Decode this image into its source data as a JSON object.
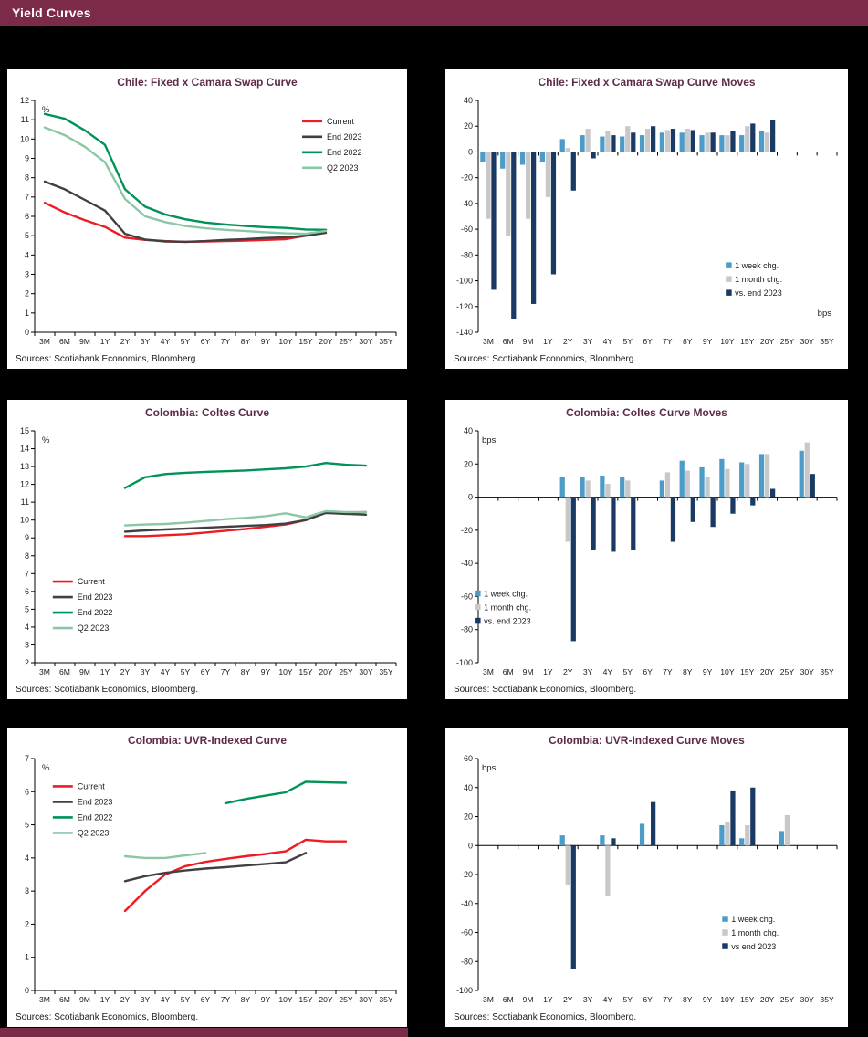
{
  "page": {
    "header_title": "Yield Curves",
    "colors": {
      "header_bar": "#7b2b49",
      "chart_title": "#5e2a49",
      "page_bg": "#000000",
      "current_red": "#ed1c24",
      "end_2023_gray": "#404040",
      "end_2022_green": "#009357",
      "q2_2023_green": "#8bc7a5",
      "week_blue": "#4d9bc8",
      "month_gray": "#c8c8c8",
      "vs_end_navy": "#1b3a63"
    }
  },
  "chart_data": [
    {
      "type": "line",
      "title": "Chile: Fixed x Camara Swap Curve",
      "unit": "%",
      "unit_pos": "top-left",
      "source": "Sources: Scotiabank Economics, Bloomberg.",
      "categories": [
        "3M",
        "6M",
        "9M",
        "1Y",
        "2Y",
        "3Y",
        "4Y",
        "5Y",
        "6Y",
        "7Y",
        "8Y",
        "9Y",
        "10Y",
        "15Y",
        "20Y",
        "25Y",
        "30Y",
        "35Y"
      ],
      "ylim": [
        0,
        12
      ],
      "ytick": 1,
      "legend": {
        "x": 0.74,
        "y": 0.09
      },
      "series": [
        {
          "name": "Current",
          "color": "#ed1c24",
          "values": [
            6.7,
            6.2,
            5.8,
            5.45,
            4.9,
            4.78,
            4.72,
            4.68,
            4.7,
            4.72,
            4.75,
            4.78,
            4.82,
            5.0,
            5.3,
            null,
            null,
            null
          ]
        },
        {
          "name": "End 2023",
          "color": "#404040",
          "values": [
            7.8,
            7.4,
            6.85,
            6.3,
            5.1,
            4.8,
            4.7,
            4.68,
            4.72,
            4.78,
            4.82,
            4.88,
            4.92,
            5.0,
            5.15,
            null,
            null,
            null
          ]
        },
        {
          "name": "End 2022",
          "color": "#009357",
          "values": [
            11.3,
            11.05,
            10.45,
            9.7,
            7.4,
            6.5,
            6.1,
            5.85,
            5.68,
            5.58,
            5.5,
            5.44,
            5.4,
            5.32,
            5.3,
            null,
            null,
            null
          ]
        },
        {
          "name": "Q2 2023",
          "color": "#8bc7a5",
          "values": [
            10.6,
            10.2,
            9.6,
            8.8,
            6.9,
            6.0,
            5.7,
            5.5,
            5.38,
            5.3,
            5.24,
            5.18,
            5.12,
            5.1,
            5.25,
            null,
            null,
            null
          ]
        }
      ]
    },
    {
      "type": "bar",
      "title": "Chile: Fixed x Camara Swap Curve Moves",
      "unit": "bps",
      "unit_pos": "bottom-right",
      "source": "Sources: Scotiabank Economics, Bloomberg.",
      "categories": [
        "3M",
        "6M",
        "9M",
        "1Y",
        "2Y",
        "3Y",
        "4Y",
        "5Y",
        "6Y",
        "7Y",
        "8Y",
        "9Y",
        "10Y",
        "15Y",
        "20Y",
        "25Y",
        "30Y",
        "35Y"
      ],
      "ylim": [
        -140,
        40
      ],
      "ytick": 20,
      "legend": {
        "x": 0.69,
        "y": 0.72
      },
      "series": [
        {
          "name": "1 week chg.",
          "color": "#4d9bc8",
          "values": [
            -8,
            -13,
            -10,
            -8,
            10,
            13,
            12,
            12,
            13,
            15,
            15,
            13,
            13,
            13,
            16,
            null,
            null,
            null
          ]
        },
        {
          "name": "1 month chg.",
          "color": "#c8c8c8",
          "values": [
            -52,
            -65,
            -52,
            -35,
            3,
            18,
            16,
            20,
            18,
            17,
            18,
            15,
            13,
            20,
            15,
            null,
            null,
            null
          ]
        },
        {
          "name": "vs. end 2023",
          "color": "#1b3a63",
          "values": [
            -107,
            -130,
            -118,
            -95,
            -30,
            -5,
            13,
            15,
            20,
            18,
            17,
            15,
            16,
            22,
            25,
            null,
            null,
            null
          ]
        }
      ]
    },
    {
      "type": "line",
      "title": "Colombia: Coltes Curve",
      "unit": "%",
      "unit_pos": "top-left",
      "source": "Sources: Scotiabank Economics, Bloomberg.",
      "categories": [
        "3M",
        "6M",
        "9M",
        "1Y",
        "2Y",
        "3Y",
        "4Y",
        "5Y",
        "6Y",
        "7Y",
        "8Y",
        "9Y",
        "10Y",
        "15Y",
        "20Y",
        "25Y",
        "30Y",
        "35Y"
      ],
      "ylim": [
        2,
        15
      ],
      "ytick": 1,
      "legend": {
        "x": 0.05,
        "y": 0.65
      },
      "series": [
        {
          "name": "Current",
          "color": "#ed1c24",
          "values": [
            null,
            null,
            null,
            null,
            9.1,
            9.1,
            9.15,
            9.2,
            9.3,
            9.4,
            9.5,
            9.62,
            9.75,
            10.0,
            10.45,
            10.4,
            10.45,
            null
          ]
        },
        {
          "name": "End 2023",
          "color": "#404040",
          "values": [
            null,
            null,
            null,
            null,
            9.35,
            9.42,
            9.47,
            9.52,
            9.57,
            9.62,
            9.67,
            9.72,
            9.8,
            10.0,
            10.4,
            10.35,
            10.3,
            null
          ]
        },
        {
          "name": "End 2022",
          "color": "#009357",
          "values": [
            null,
            null,
            null,
            null,
            11.8,
            12.4,
            12.58,
            12.65,
            12.7,
            12.74,
            12.78,
            12.84,
            12.9,
            13.0,
            13.2,
            13.1,
            13.05,
            null
          ]
        },
        {
          "name": "Q2 2023",
          "color": "#8bc7a5",
          "values": [
            null,
            null,
            null,
            null,
            9.7,
            9.75,
            9.78,
            9.85,
            9.95,
            10.05,
            10.12,
            10.22,
            10.38,
            10.15,
            10.5,
            10.45,
            10.45,
            null
          ]
        }
      ]
    },
    {
      "type": "bar",
      "title": "Colombia: Coltes Curve Moves",
      "unit": "bps",
      "unit_pos": "top-left",
      "source": "Sources: Scotiabank Economics, Bloomberg.",
      "categories": [
        "3M",
        "6M",
        "9M",
        "1Y",
        "2Y",
        "3Y",
        "4Y",
        "5Y",
        "6Y",
        "7Y",
        "8Y",
        "9Y",
        "10Y",
        "15Y",
        "20Y",
        "25Y",
        "30Y",
        "35Y"
      ],
      "ylim": [
        -100,
        40
      ],
      "ytick": 20,
      "legend": {
        "x": -0.01,
        "y": 0.71
      },
      "series": [
        {
          "name": "1 week chg.",
          "color": "#4d9bc8",
          "values": [
            null,
            null,
            null,
            null,
            12,
            12,
            13,
            12,
            null,
            10,
            22,
            18,
            23,
            21,
            26,
            null,
            28,
            null
          ]
        },
        {
          "name": "1 month chg.",
          "color": "#c8c8c8",
          "values": [
            null,
            null,
            null,
            null,
            -27,
            10,
            8,
            10,
            null,
            15,
            16,
            12,
            17,
            20,
            26,
            null,
            33,
            null
          ]
        },
        {
          "name": "vs. end 2023",
          "color": "#1b3a63",
          "values": [
            null,
            null,
            null,
            null,
            -87,
            -32,
            -33,
            -32,
            null,
            -27,
            -15,
            -18,
            -10,
            -5,
            5,
            null,
            14,
            null
          ]
        }
      ]
    },
    {
      "type": "line",
      "title": "Colombia: UVR-Indexed Curve",
      "unit": "%",
      "unit_pos": "top-left",
      "source": "Sources: Scotiabank Economics, Bloomberg.",
      "categories": [
        "3M",
        "6M",
        "9M",
        "1Y",
        "2Y",
        "3Y",
        "4Y",
        "5Y",
        "6Y",
        "7Y",
        "8Y",
        "9Y",
        "10Y",
        "15Y",
        "20Y",
        "25Y",
        "30Y",
        "35Y"
      ],
      "ylim": [
        0,
        7
      ],
      "ytick": 1,
      "legend": {
        "x": 0.05,
        "y": 0.12
      },
      "series": [
        {
          "name": "Current",
          "color": "#ed1c24",
          "values": [
            null,
            null,
            null,
            null,
            2.4,
            3.0,
            3.5,
            3.75,
            3.88,
            3.97,
            4.05,
            4.12,
            4.2,
            4.55,
            4.5,
            4.5,
            null,
            null
          ]
        },
        {
          "name": "End 2023",
          "color": "#404040",
          "values": [
            null,
            null,
            null,
            null,
            3.3,
            3.45,
            3.55,
            3.62,
            3.68,
            3.72,
            3.77,
            3.82,
            3.87,
            4.15,
            null,
            null,
            null,
            null
          ]
        },
        {
          "name": "End 2022",
          "color": "#009357",
          "values": [
            null,
            null,
            null,
            null,
            null,
            null,
            null,
            null,
            null,
            5.65,
            5.78,
            5.88,
            5.98,
            6.3,
            6.28,
            6.27,
            null,
            null
          ]
        },
        {
          "name": "Q2 2023",
          "color": "#8bc7a5",
          "values": [
            null,
            null,
            null,
            null,
            4.05,
            4.0,
            4.0,
            4.08,
            4.15,
            null,
            null,
            null,
            null,
            null,
            null,
            null,
            null,
            null
          ]
        }
      ]
    },
    {
      "type": "bar",
      "title": "Colombia: UVR-Indexed Curve Moves",
      "unit": "bps",
      "unit_pos": "top-left",
      "source": "Sources: Scotiabank Economics, Bloomberg.",
      "categories": [
        "3M",
        "6M",
        "9M",
        "1Y",
        "2Y",
        "3Y",
        "4Y",
        "5Y",
        "6Y",
        "7Y",
        "8Y",
        "9Y",
        "10Y",
        "15Y",
        "20Y",
        "25Y",
        "30Y",
        "35Y"
      ],
      "ylim": [
        -100,
        60
      ],
      "ytick": 20,
      "legend": {
        "x": 0.68,
        "y": 0.7
      },
      "series": [
        {
          "name": "1 week chg.",
          "color": "#4d9bc8",
          "values": [
            null,
            null,
            null,
            null,
            7,
            null,
            7,
            null,
            15,
            null,
            null,
            null,
            14,
            5,
            null,
            10,
            null,
            null
          ]
        },
        {
          "name": "1 month chg.",
          "color": "#c8c8c8",
          "values": [
            null,
            null,
            null,
            null,
            -27,
            null,
            -35,
            null,
            null,
            null,
            null,
            null,
            16,
            14,
            null,
            21,
            null,
            null
          ]
        },
        {
          "name": "vs end 2023",
          "color": "#1b3a63",
          "values": [
            null,
            null,
            null,
            null,
            -85,
            null,
            5,
            null,
            30,
            null,
            null,
            null,
            38,
            40,
            null,
            null,
            null,
            null
          ]
        }
      ]
    }
  ]
}
